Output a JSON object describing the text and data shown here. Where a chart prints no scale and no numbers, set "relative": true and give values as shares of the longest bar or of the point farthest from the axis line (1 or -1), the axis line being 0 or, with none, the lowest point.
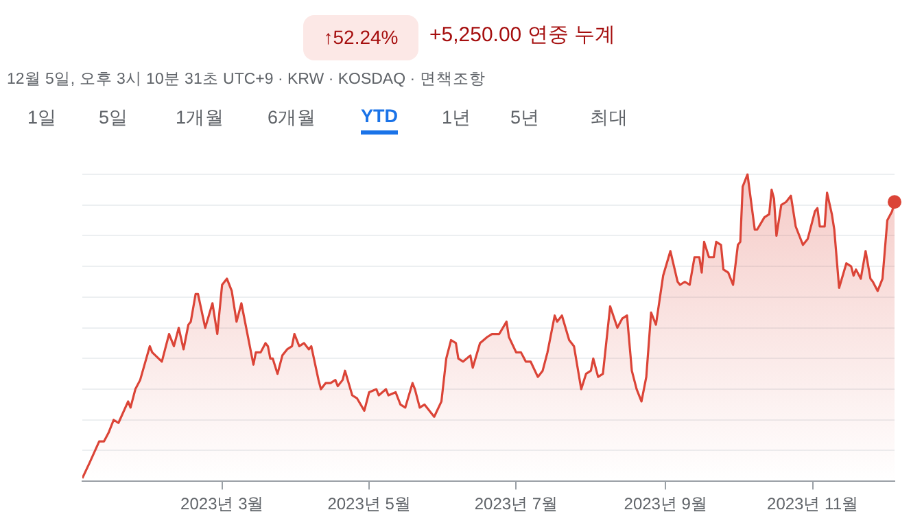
{
  "chart_data": {
    "type": "area",
    "relative": true,
    "annotations": [
      "↑52.24%",
      "+5,250.00 연중 누계",
      "12월 5일, 오후 3시 10분 31초 UTC+9 · KRW · KOSDAQ · 면책조항",
      "1일",
      "5일",
      "1개월",
      "6개월",
      "YTD",
      "1년",
      "5년",
      "최대"
    ],
    "xlim": [
      "2023-01-02",
      "2023-12-05"
    ],
    "xticks": [
      {
        "value": "2023-03-01",
        "label": "2023년 3월"
      },
      {
        "value": "2023-05-01",
        "label": "2023년 5월"
      },
      {
        "value": "2023-07-01",
        "label": "2023년 7월"
      },
      {
        "value": "2023-09-01",
        "label": "2023년 9월"
      },
      {
        "value": "2023-11-01",
        "label": "2023년 11월"
      }
    ],
    "grid": "y",
    "legend": false,
    "series": [
      {
        "color": "#db4437",
        "marker": "none",
        "x": [
          "2023-01-02",
          "2023-01-05",
          "2023-01-09",
          "2023-01-11",
          "2023-01-13",
          "2023-01-15",
          "2023-01-17",
          "2023-01-21",
          "2023-01-22",
          "2023-01-24",
          "2023-01-26",
          "2023-01-30",
          "2023-01-31",
          "2023-02-04",
          "2023-02-07",
          "2023-02-09",
          "2023-02-11",
          "2023-02-13",
          "2023-02-15",
          "2023-02-16",
          "2023-02-18",
          "2023-02-19",
          "2023-02-22",
          "2023-02-25",
          "2023-02-27",
          "2023-03-01",
          "2023-03-03",
          "2023-03-05",
          "2023-03-07",
          "2023-03-09",
          "2023-03-11",
          "2023-03-14",
          "2023-03-15",
          "2023-03-17",
          "2023-03-19",
          "2023-03-20",
          "2023-03-21",
          "2023-03-22",
          "2023-03-24",
          "2023-03-26",
          "2023-03-28",
          "2023-03-30",
          "2023-03-31",
          "2023-04-02",
          "2023-04-04",
          "2023-04-06",
          "2023-04-07",
          "2023-04-10",
          "2023-04-11",
          "2023-04-13",
          "2023-04-15",
          "2023-04-17",
          "2023-04-18",
          "2023-04-20",
          "2023-04-21",
          "2023-04-24",
          "2023-04-26",
          "2023-04-29",
          "2023-05-01",
          "2023-05-04",
          "2023-05-05",
          "2023-05-08",
          "2023-05-09",
          "2023-05-12",
          "2023-05-14",
          "2023-05-16",
          "2023-05-19",
          "2023-05-20",
          "2023-05-22",
          "2023-05-24",
          "2023-05-28",
          "2023-05-31",
          "2023-06-02",
          "2023-06-04",
          "2023-06-06",
          "2023-06-07",
          "2023-06-09",
          "2023-06-12",
          "2023-06-13",
          "2023-06-16",
          "2023-06-19",
          "2023-06-21",
          "2023-06-24",
          "2023-06-27",
          "2023-06-28",
          "2023-07-01",
          "2023-07-03",
          "2023-07-05",
          "2023-07-07",
          "2023-07-10",
          "2023-07-12",
          "2023-07-14",
          "2023-07-17",
          "2023-07-18",
          "2023-07-20",
          "2023-07-23",
          "2023-07-25",
          "2023-07-28",
          "2023-07-30",
          "2023-08-01",
          "2023-08-02",
          "2023-08-04",
          "2023-08-06",
          "2023-08-09",
          "2023-08-12",
          "2023-08-14",
          "2023-08-16",
          "2023-08-18",
          "2023-08-20",
          "2023-08-22",
          "2023-08-24",
          "2023-08-26",
          "2023-08-28",
          "2023-08-31",
          "2023-09-03",
          "2023-09-06",
          "2023-09-07",
          "2023-09-09",
          "2023-09-11",
          "2023-09-13",
          "2023-09-15",
          "2023-09-16",
          "2023-09-17",
          "2023-09-19",
          "2023-09-21",
          "2023-09-22",
          "2023-09-24",
          "2023-09-25",
          "2023-09-27",
          "2023-09-29",
          "2023-10-01",
          "2023-10-02",
          "2023-10-03",
          "2023-10-05",
          "2023-10-08",
          "2023-10-09",
          "2023-10-12",
          "2023-10-14",
          "2023-10-15",
          "2023-10-16",
          "2023-10-17",
          "2023-10-19",
          "2023-10-21",
          "2023-10-23",
          "2023-10-25",
          "2023-10-28",
          "2023-10-30",
          "2023-11-02",
          "2023-11-03",
          "2023-11-04",
          "2023-11-06",
          "2023-11-07",
          "2023-11-09",
          "2023-11-10",
          "2023-11-12",
          "2023-11-15",
          "2023-11-17",
          "2023-11-18",
          "2023-11-19",
          "2023-11-21",
          "2023-11-23",
          "2023-11-25",
          "2023-11-26",
          "2023-11-28",
          "2023-11-30",
          "2023-12-02",
          "2023-12-04",
          "2023-12-05"
        ],
        "values": [
          0.01,
          0.06,
          0.13,
          0.13,
          0.16,
          0.2,
          0.19,
          0.26,
          0.24,
          0.3,
          0.33,
          0.44,
          0.42,
          0.39,
          0.48,
          0.44,
          0.5,
          0.43,
          0.51,
          0.52,
          0.61,
          0.61,
          0.5,
          0.58,
          0.48,
          0.64,
          0.66,
          0.62,
          0.52,
          0.58,
          0.5,
          0.38,
          0.42,
          0.42,
          0.45,
          0.44,
          0.4,
          0.4,
          0.35,
          0.41,
          0.43,
          0.44,
          0.48,
          0.44,
          0.45,
          0.43,
          0.44,
          0.33,
          0.3,
          0.32,
          0.32,
          0.33,
          0.31,
          0.33,
          0.36,
          0.28,
          0.27,
          0.23,
          0.29,
          0.3,
          0.28,
          0.3,
          0.28,
          0.29,
          0.25,
          0.24,
          0.32,
          0.3,
          0.24,
          0.25,
          0.21,
          0.26,
          0.4,
          0.46,
          0.45,
          0.4,
          0.39,
          0.41,
          0.37,
          0.45,
          0.47,
          0.48,
          0.48,
          0.52,
          0.47,
          0.42,
          0.42,
          0.39,
          0.39,
          0.34,
          0.36,
          0.42,
          0.54,
          0.52,
          0.54,
          0.46,
          0.44,
          0.3,
          0.35,
          0.36,
          0.4,
          0.34,
          0.35,
          0.57,
          0.5,
          0.53,
          0.54,
          0.36,
          0.3,
          0.26,
          0.34,
          0.55,
          0.51,
          0.67,
          0.75,
          0.65,
          0.64,
          0.65,
          0.64,
          0.73,
          0.73,
          0.68,
          0.78,
          0.73,
          0.73,
          0.78,
          0.77,
          0.69,
          0.68,
          0.64,
          0.77,
          0.78,
          0.96,
          1.0,
          0.82,
          0.82,
          0.86,
          0.87,
          0.95,
          0.92,
          0.8,
          0.9,
          0.91,
          0.93,
          0.83,
          0.77,
          0.79,
          0.88,
          0.89,
          0.83,
          0.83,
          0.94,
          0.87,
          0.82,
          0.63,
          0.71,
          0.7,
          0.67,
          0.69,
          0.66,
          0.75,
          0.66,
          0.65,
          0.62,
          0.66,
          0.85,
          0.88,
          0.91
        ]
      },
      {
        "type": "scatter",
        "color": "#db4437",
        "marker": "circle",
        "x": [
          "2023-12-05"
        ],
        "values": [
          0.91
        ]
      }
    ]
  }
}
